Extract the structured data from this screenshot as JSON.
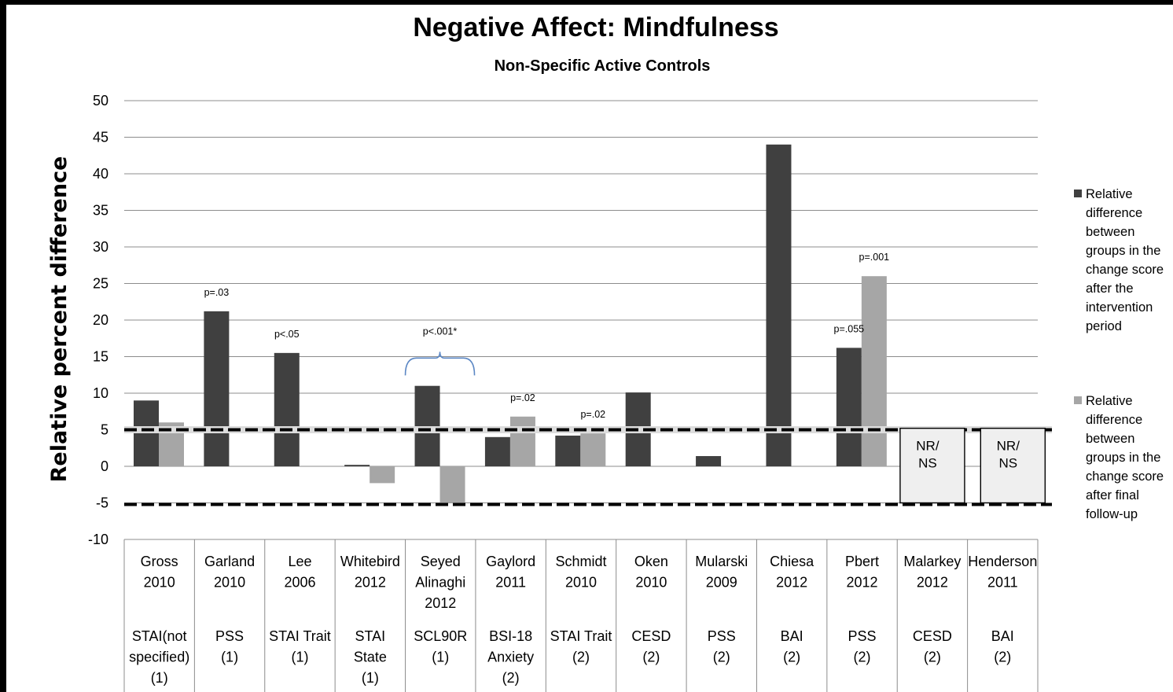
{
  "chart_data": {
    "type": "bar",
    "title": "Negative Affect: Mindfulness",
    "subtitle": "Non-Specific Active Controls",
    "ylabel": "Relative percent difference",
    "ylim": [
      -10,
      50
    ],
    "yticks": [
      50,
      45,
      40,
      35,
      30,
      25,
      20,
      15,
      10,
      5,
      0,
      -5,
      -10
    ],
    "grid": true,
    "legend_position": "right",
    "categories": [
      {
        "study": [
          "Gross",
          "2010"
        ],
        "measure": [
          "STAI(not",
          "specified)",
          "(1)"
        ]
      },
      {
        "study": [
          "Garland",
          "2010"
        ],
        "measure": [
          "PSS",
          "(1)"
        ]
      },
      {
        "study": [
          "Lee",
          "2006"
        ],
        "measure": [
          "STAI Trait",
          "(1)"
        ]
      },
      {
        "study": [
          "Whitebird",
          "2012"
        ],
        "measure": [
          "STAI",
          "State",
          "(1)"
        ]
      },
      {
        "study": [
          "Seyed",
          "Alinaghi",
          "2012"
        ],
        "measure": [
          "SCL90R",
          "(1)"
        ]
      },
      {
        "study": [
          "Gaylord",
          "2011"
        ],
        "measure": [
          "BSI-18",
          "Anxiety",
          "(2)"
        ]
      },
      {
        "study": [
          "Schmidt",
          "2010"
        ],
        "measure": [
          "STAI Trait",
          "(2)"
        ]
      },
      {
        "study": [
          "Oken",
          "2010"
        ],
        "measure": [
          "CESD",
          "(2)"
        ]
      },
      {
        "study": [
          "Mularski",
          "2009"
        ],
        "measure": [
          "PSS",
          "(2)"
        ]
      },
      {
        "study": [
          "Chiesa",
          "2012"
        ],
        "measure": [
          "BAI",
          "(2)"
        ]
      },
      {
        "study": [
          "Pbert",
          "2012"
        ],
        "measure": [
          "PSS",
          "(2)"
        ]
      },
      {
        "study": [
          "Malarkey",
          "2012"
        ],
        "measure": [
          "CESD",
          "(2)"
        ]
      },
      {
        "study": [
          "Henderson",
          "2011"
        ],
        "measure": [
          "BAI",
          "(2)"
        ]
      }
    ],
    "series": [
      {
        "name": "Relative difference between groups in the change score after the intervention period",
        "legend_lines": [
          "Relative",
          "difference",
          "between",
          "groups in the",
          "change score",
          "after the",
          "intervention",
          "period"
        ],
        "color": "#404040",
        "values": [
          9,
          21.2,
          15.5,
          0.2,
          11,
          4,
          4.2,
          10.1,
          1.4,
          44,
          16.2,
          null,
          null
        ]
      },
      {
        "name": "Relative difference between groups in the change score after final follow-up",
        "legend_lines": [
          "Relative",
          "difference",
          "between",
          "groups in the",
          "change score",
          "after final",
          "follow-up"
        ],
        "color": "#a6a6a6",
        "values": [
          6,
          null,
          null,
          -2.3,
          -5,
          6.8,
          4.5,
          null,
          null,
          null,
          26,
          null,
          null
        ]
      }
    ],
    "annotations": [
      {
        "text": "p=.03",
        "category": 1,
        "series": 0
      },
      {
        "text": "p<.05",
        "category": 2,
        "series": 0
      },
      {
        "text": "p<.001*",
        "category": 4,
        "series": "both"
      },
      {
        "text": "p=.02",
        "category": 5,
        "series": 1
      },
      {
        "text": "p=.02",
        "category": 6,
        "series": 1
      },
      {
        "text": "p=.055",
        "category": 10,
        "series": 0
      },
      {
        "text": "p=.001",
        "category": 10,
        "series": 1
      }
    ],
    "reference_lines": [
      5,
      -5
    ],
    "not_reported_boxes": [
      {
        "category": 11,
        "lines": [
          "NR/",
          "NS"
        ]
      },
      {
        "category": 12,
        "lines": [
          "NR/",
          "NS"
        ]
      }
    ]
  }
}
